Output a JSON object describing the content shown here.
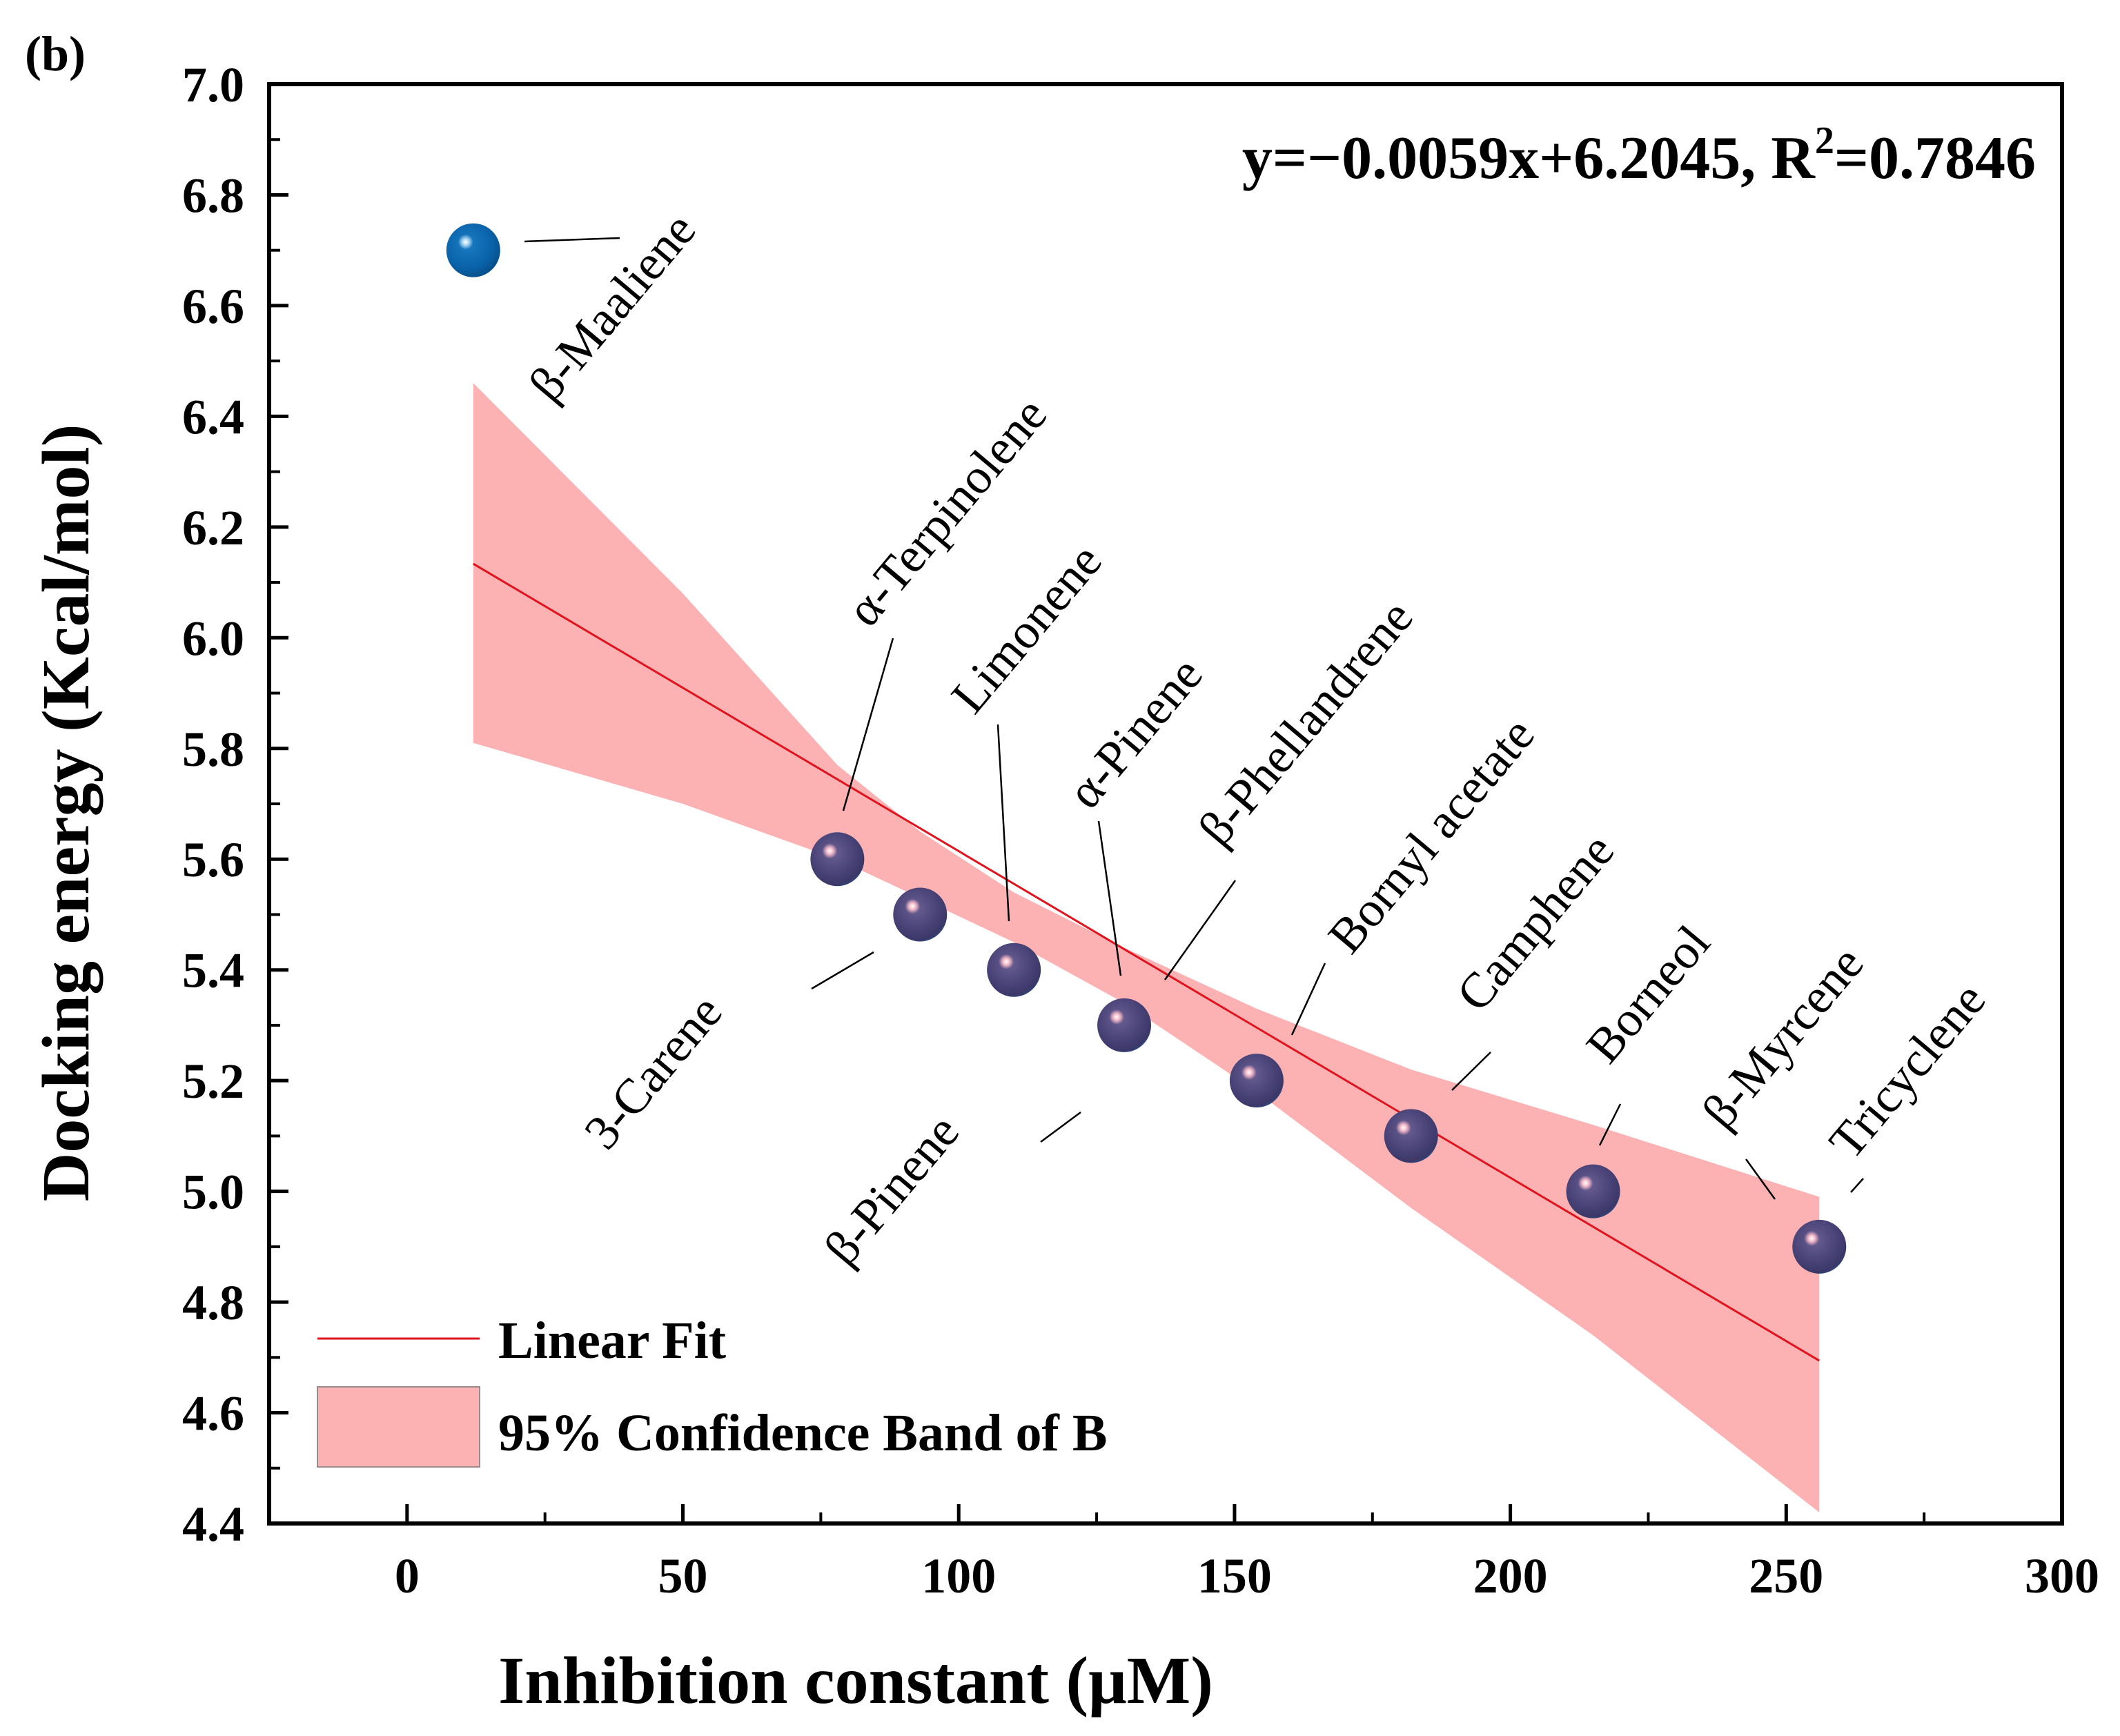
{
  "panel_label": "(b)",
  "equation": {
    "prefix": "y=−0.0059x+6.2045, R",
    "sup": "2",
    "suffix": "=0.7846"
  },
  "colors": {
    "fit_line": "#e0141e",
    "band": "#fcb1b3",
    "axis": "#000000",
    "point_outer": "#0a62a8",
    "point_inner": "#4a4478",
    "highlight": "#f3b7c7"
  },
  "chart_data": {
    "type": "scatter",
    "xlabel": "Inhibition constant (μM)",
    "ylabel": "Docking energy (Kcal/mol)",
    "xlim": [
      -25,
      300
    ],
    "ylim": [
      4.4,
      7.0
    ],
    "xticks": [
      0,
      50,
      100,
      150,
      200,
      250,
      300
    ],
    "xtick_labels": [
      "0",
      "50",
      "100",
      "150",
      "200",
      "250",
      "300"
    ],
    "yticks": [
      4.4,
      4.6,
      4.8,
      5.0,
      5.2,
      5.4,
      5.6,
      5.8,
      6.0,
      6.2,
      6.4,
      6.6,
      6.8,
      7.0
    ],
    "ytick_labels": [
      "4.4",
      "4.6",
      "4.8",
      "5.0",
      "5.2",
      "5.4",
      "5.6",
      "5.8",
      "6.0",
      "6.2",
      "6.4",
      "6.6",
      "6.8",
      "7.0"
    ],
    "grid": false,
    "legend_position": "bottom-left",
    "points": [
      {
        "label": "β-Maaliene",
        "x": 12,
        "y": 6.7
      },
      {
        "label": "α-Terpinolene",
        "x": 78,
        "y": 5.6
      },
      {
        "label": "3-Carene",
        "x": 93,
        "y": 5.5
      },
      {
        "label": "Limonene",
        "x": 110,
        "y": 5.4
      },
      {
        "label": "α-Pinene",
        "x": 130,
        "y": 5.3
      },
      {
        "label": "β-Pinene",
        "x": 130,
        "y": 5.3
      },
      {
        "label": "β-Phellandrene",
        "x": 154,
        "y": 5.2
      },
      {
        "label": "Bornyl acetate",
        "x": 154,
        "y": 5.2
      },
      {
        "label": "Camphene",
        "x": 182,
        "y": 5.1
      },
      {
        "label": "Borneol",
        "x": 215,
        "y": 5.0
      },
      {
        "label": "β-Myrcene",
        "x": 256,
        "y": 4.9
      },
      {
        "label": "Tricyclene",
        "x": 256,
        "y": 4.9
      }
    ],
    "fit": {
      "name": "Linear Fit",
      "slope": -0.0059,
      "intercept": 6.2045,
      "r2": 0.7846,
      "x_range": [
        12,
        256
      ]
    },
    "confidence_band": {
      "name": "95% Confidence Band of B",
      "x": [
        12,
        50,
        78,
        93,
        110,
        130,
        154,
        182,
        215,
        256
      ],
      "upper": [
        6.46,
        6.08,
        5.77,
        5.65,
        5.54,
        5.44,
        5.33,
        5.22,
        5.12,
        4.99
      ],
      "lower": [
        5.81,
        5.7,
        5.6,
        5.53,
        5.45,
        5.34,
        5.18,
        4.97,
        4.74,
        4.42
      ]
    }
  }
}
